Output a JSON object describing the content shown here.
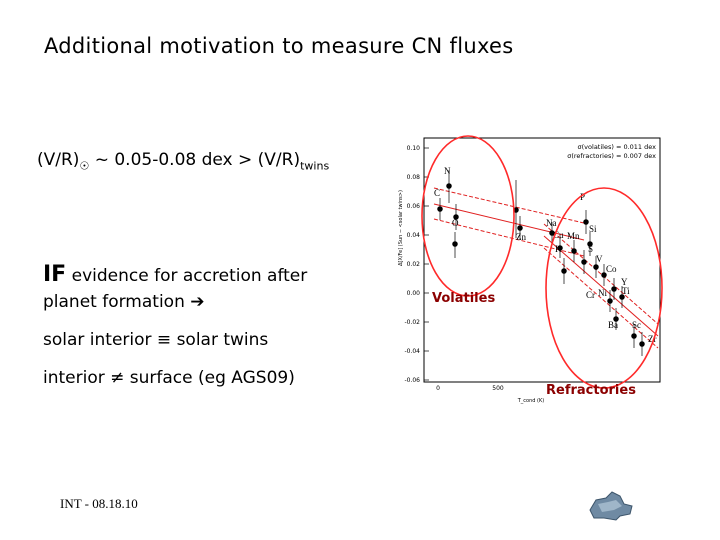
{
  "slide": {
    "title": "Additional motivation to measure CN fluxes",
    "vr_line": {
      "prefix": "(V/R)",
      "sun_symbol": "☉",
      "middle": " ~ 0.05-0.08 dex > (V/R)",
      "sub": "twins"
    },
    "if_line": {
      "big": "IF",
      "rest": " evidence for accretion after"
    },
    "planet_line": {
      "text": "planet formation ",
      "arrow": "➔"
    },
    "solar_line": "solar interior ≡ solar twins",
    "interior_line": "interior ≠ surface (eg AGS09)",
    "footer": "INT - 08.18.10"
  },
  "figure": {
    "legend": [
      "σ(volatiles) = 0.011 dex",
      "σ(refractories) = 0.007 dex"
    ],
    "y_axis_label": "Δ[X/Fe] (Sun − <solar twins>)",
    "x_axis_label": "T_cond (K)",
    "y_ticks": [
      "0.10",
      "0.08",
      "0.06",
      "0.04",
      "0.02",
      "0.00",
      "-0.02",
      "-0.04",
      "-0.06"
    ],
    "x_ticks": [
      "0",
      "500"
    ],
    "elements": [
      "N",
      "C",
      "O",
      "Zn",
      "Na",
      "Cu",
      "Mn",
      "P",
      "Si",
      "K",
      "Cr",
      "S",
      "V",
      "Co",
      "Y",
      "Ti",
      "Ni",
      "Ba",
      "Sc",
      "Zr"
    ],
    "annotations": {
      "volatiles": "Volatiles",
      "refractories": "Refractories"
    }
  },
  "colors": {
    "circle": "#ff2a2a",
    "annotation": "#8b0000",
    "fit_line": "#e02020"
  },
  "icons": {
    "logo": "telescope-logo-icon"
  }
}
